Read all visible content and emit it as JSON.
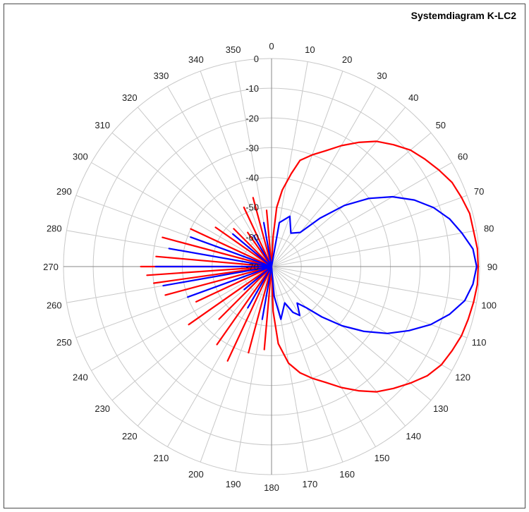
{
  "chart_data": {
    "type": "polar-line",
    "title": "Systemdiagram K-LC2",
    "angle_ticks": [
      "0",
      "10",
      "20",
      "30",
      "40",
      "50",
      "60",
      "70",
      "80",
      "90",
      "100",
      "110",
      "120",
      "130",
      "140",
      "150",
      "160",
      "170",
      "180",
      "190",
      "200",
      "210",
      "220",
      "230",
      "240",
      "250",
      "260",
      "270",
      "280",
      "290",
      "300",
      "310",
      "320",
      "330",
      "340",
      "350"
    ],
    "radial_ticks": [
      "0",
      "-10",
      "-20",
      "-30",
      "-40",
      "-50",
      "-60",
      "-70"
    ],
    "rlim": [
      -70,
      0
    ],
    "angle_unit": "degrees",
    "radial_unit": "dB",
    "grid": true,
    "colors": {
      "series_1": "#ff0000",
      "series_2": "#0000ff",
      "grid": "#c8c8c8",
      "axis": "#888888"
    },
    "series": [
      {
        "color": "#ff0000",
        "points": [
          [
            0,
            -70
          ],
          [
            3,
            -60
          ],
          [
            5,
            -50
          ],
          [
            8,
            -44
          ],
          [
            12,
            -38
          ],
          [
            15,
            -33
          ],
          [
            20,
            -30
          ],
          [
            25,
            -27
          ],
          [
            30,
            -23
          ],
          [
            35,
            -19
          ],
          [
            40,
            -15
          ],
          [
            45,
            -12
          ],
          [
            50,
            -9
          ],
          [
            55,
            -7
          ],
          [
            60,
            -5
          ],
          [
            65,
            -3
          ],
          [
            70,
            -2
          ],
          [
            75,
            -1
          ],
          [
            80,
            -1
          ],
          [
            85,
            -0.5
          ],
          [
            90,
            -0.5
          ],
          [
            95,
            -0.5
          ],
          [
            100,
            -1
          ],
          [
            105,
            -1.5
          ],
          [
            110,
            -2
          ],
          [
            115,
            -3
          ],
          [
            120,
            -4
          ],
          [
            125,
            -6
          ],
          [
            130,
            -9
          ],
          [
            135,
            -12
          ],
          [
            140,
            -15
          ],
          [
            145,
            -19
          ],
          [
            150,
            -23
          ],
          [
            155,
            -27
          ],
          [
            160,
            -30
          ],
          [
            165,
            -33
          ],
          [
            170,
            -37
          ],
          [
            175,
            -44
          ],
          [
            178,
            -55
          ],
          [
            180,
            -70
          ],
          [
            185,
            -42
          ],
          [
            190,
            -70
          ],
          [
            195,
            -40
          ],
          [
            200,
            -70
          ],
          [
            205,
            -35
          ],
          [
            210,
            -70
          ],
          [
            215,
            -38
          ],
          [
            220,
            -70
          ],
          [
            225,
            -45
          ],
          [
            230,
            -70
          ],
          [
            235,
            -36
          ],
          [
            240,
            -70
          ],
          [
            245,
            -42
          ],
          [
            250,
            -70
          ],
          [
            255,
            -33
          ],
          [
            260,
            -70
          ],
          [
            262,
            -30
          ],
          [
            264,
            -70
          ],
          [
            266,
            -28
          ],
          [
            268,
            -70
          ],
          [
            270,
            -26
          ],
          [
            272,
            -70
          ],
          [
            275,
            -31
          ],
          [
            280,
            -70
          ],
          [
            285,
            -32
          ],
          [
            290,
            -70
          ],
          [
            295,
            -40
          ],
          [
            300,
            -70
          ],
          [
            305,
            -47
          ],
          [
            310,
            -70
          ],
          [
            315,
            -52
          ],
          [
            320,
            -70
          ],
          [
            325,
            -56
          ],
          [
            330,
            -70
          ],
          [
            335,
            -48
          ],
          [
            340,
            -70
          ],
          [
            345,
            -46
          ],
          [
            350,
            -70
          ],
          [
            355,
            -51
          ],
          [
            360,
            -70
          ]
        ]
      },
      {
        "color": "#0000ff",
        "points": [
          [
            0,
            -70
          ],
          [
            10,
            -55
          ],
          [
            20,
            -52
          ],
          [
            30,
            -57
          ],
          [
            40,
            -55
          ],
          [
            45,
            -47
          ],
          [
            50,
            -38
          ],
          [
            55,
            -30
          ],
          [
            60,
            -23
          ],
          [
            65,
            -17
          ],
          [
            70,
            -12
          ],
          [
            75,
            -8
          ],
          [
            80,
            -5
          ],
          [
            85,
            -2
          ],
          [
            90,
            -1
          ],
          [
            95,
            -2
          ],
          [
            100,
            -4
          ],
          [
            105,
            -8
          ],
          [
            110,
            -13
          ],
          [
            115,
            -19
          ],
          [
            120,
            -25
          ],
          [
            125,
            -32
          ],
          [
            130,
            -39
          ],
          [
            135,
            -46
          ],
          [
            140,
            -52
          ],
          [
            145,
            -55
          ],
          [
            150,
            -51
          ],
          [
            155,
            -53
          ],
          [
            160,
            -57
          ],
          [
            165,
            -55
          ],
          [
            170,
            -52
          ],
          [
            175,
            -60
          ],
          [
            180,
            -70
          ],
          [
            190,
            -52
          ],
          [
            200,
            -70
          ],
          [
            210,
            -54
          ],
          [
            220,
            -70
          ],
          [
            230,
            -58
          ],
          [
            240,
            -70
          ],
          [
            250,
            -40
          ],
          [
            255,
            -70
          ],
          [
            260,
            -33
          ],
          [
            265,
            -70
          ],
          [
            270,
            -31
          ],
          [
            275,
            -70
          ],
          [
            280,
            -35
          ],
          [
            285,
            -70
          ],
          [
            290,
            -41
          ],
          [
            300,
            -70
          ],
          [
            310,
            -53
          ],
          [
            320,
            -70
          ],
          [
            330,
            -58
          ],
          [
            340,
            -70
          ],
          [
            350,
            -55
          ],
          [
            360,
            -70
          ]
        ]
      }
    ]
  }
}
